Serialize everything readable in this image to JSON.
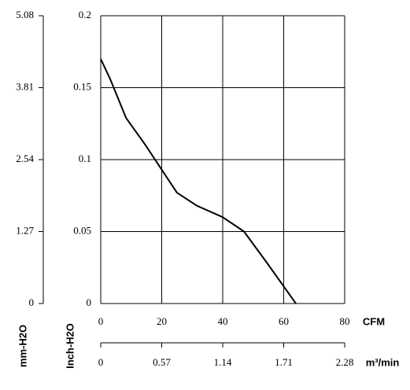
{
  "chart_data": {
    "type": "line",
    "x": [
      0,
      3.1,
      8.3,
      14.7,
      20,
      25,
      31.5,
      40,
      47,
      54.6,
      64
    ],
    "values": [
      0.17,
      0.156,
      0.129,
      0.11,
      0.093,
      0.077,
      0.068,
      0.06,
      0.05,
      0.028,
      0
    ],
    "color": "#000000",
    "xlim": [
      0,
      80
    ],
    "xticks": [
      0,
      20,
      40,
      60,
      80
    ],
    "ylim": [
      0,
      0.2
    ],
    "yticks": [
      0,
      0.05,
      0.1,
      0.15,
      0.2
    ],
    "y2lim": [
      0,
      5.08
    ],
    "y2ticks": [
      0,
      1.27,
      2.54,
      3.81,
      5.08
    ],
    "x2lim": [
      0,
      2.28
    ],
    "x2ticks": [
      0,
      0.57,
      1.14,
      1.71,
      2.28
    ],
    "xlabel": "CFM",
    "x2label": "m³/min",
    "ylabel": "Inch-H2O",
    "y2label": "mm-H2O",
    "grid": true
  }
}
